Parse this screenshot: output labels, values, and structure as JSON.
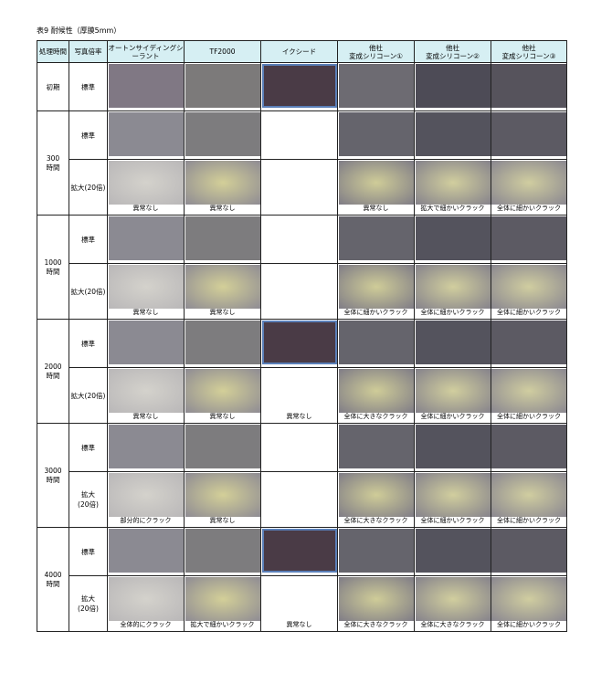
{
  "title": "表9 耐候性（厚膜5mm）",
  "table": {
    "header": [
      "処理時間",
      "写真倍率",
      "オートンサイディングシーラント",
      "TF2000",
      "イクシード",
      "他社\n変成シリコーン①",
      "他社\n変成シリコーン②",
      "他社\n変成シリコーン③"
    ],
    "rows": [
      {
        "time": "初期",
        "sub": [
          {
            "mag": "標準"
          }
        ]
      },
      {
        "time": "300\n時間",
        "sub": [
          {
            "mag": "標準"
          },
          {
            "mag": "拡大(20倍)",
            "captions": [
              "異常なし",
              "異常なし",
              null,
              "異常なし",
              "拡大で細かいクラック",
              "全体に細かいクラック"
            ]
          }
        ]
      },
      {
        "time": "1000\n時間",
        "sub": [
          {
            "mag": "標準"
          },
          {
            "mag": "拡大(20倍)",
            "captions": [
              "異常なし",
              "異常なし",
              null,
              "全体に細かいクラック",
              "全体に細かいクラック",
              "全体に細かいクラック"
            ]
          }
        ]
      },
      {
        "time": "2000\n時間",
        "sub": [
          {
            "mag": "標準"
          },
          {
            "mag": "拡大(20倍)",
            "captions": [
              "異常なし",
              "異常なし",
              "異常なし",
              "全体に大きなクラック",
              "全体に細かいクラック",
              "全体に細かいクラック"
            ]
          }
        ]
      },
      {
        "time": "3000\n時間",
        "sub": [
          {
            "mag": "標準"
          },
          {
            "mag": "拡大\n(20倍)",
            "captions": [
              "部分的にクラック",
              "異常なし",
              null,
              "全体に大きなクラック",
              "全体に細かいクラック",
              "全体に細かいクラック"
            ]
          }
        ]
      },
      {
        "time": "4000\n時間",
        "sub": [
          {
            "mag": "標準"
          },
          {
            "mag": "拡大\n(20倍)",
            "captions": [
              "全体的にクラック",
              "拡大で細かいクラック",
              "異常なし",
              "全体に大きなクラック",
              "全体に大きなクラック",
              "全体に細かいクラック"
            ]
          }
        ]
      }
    ]
  }
}
